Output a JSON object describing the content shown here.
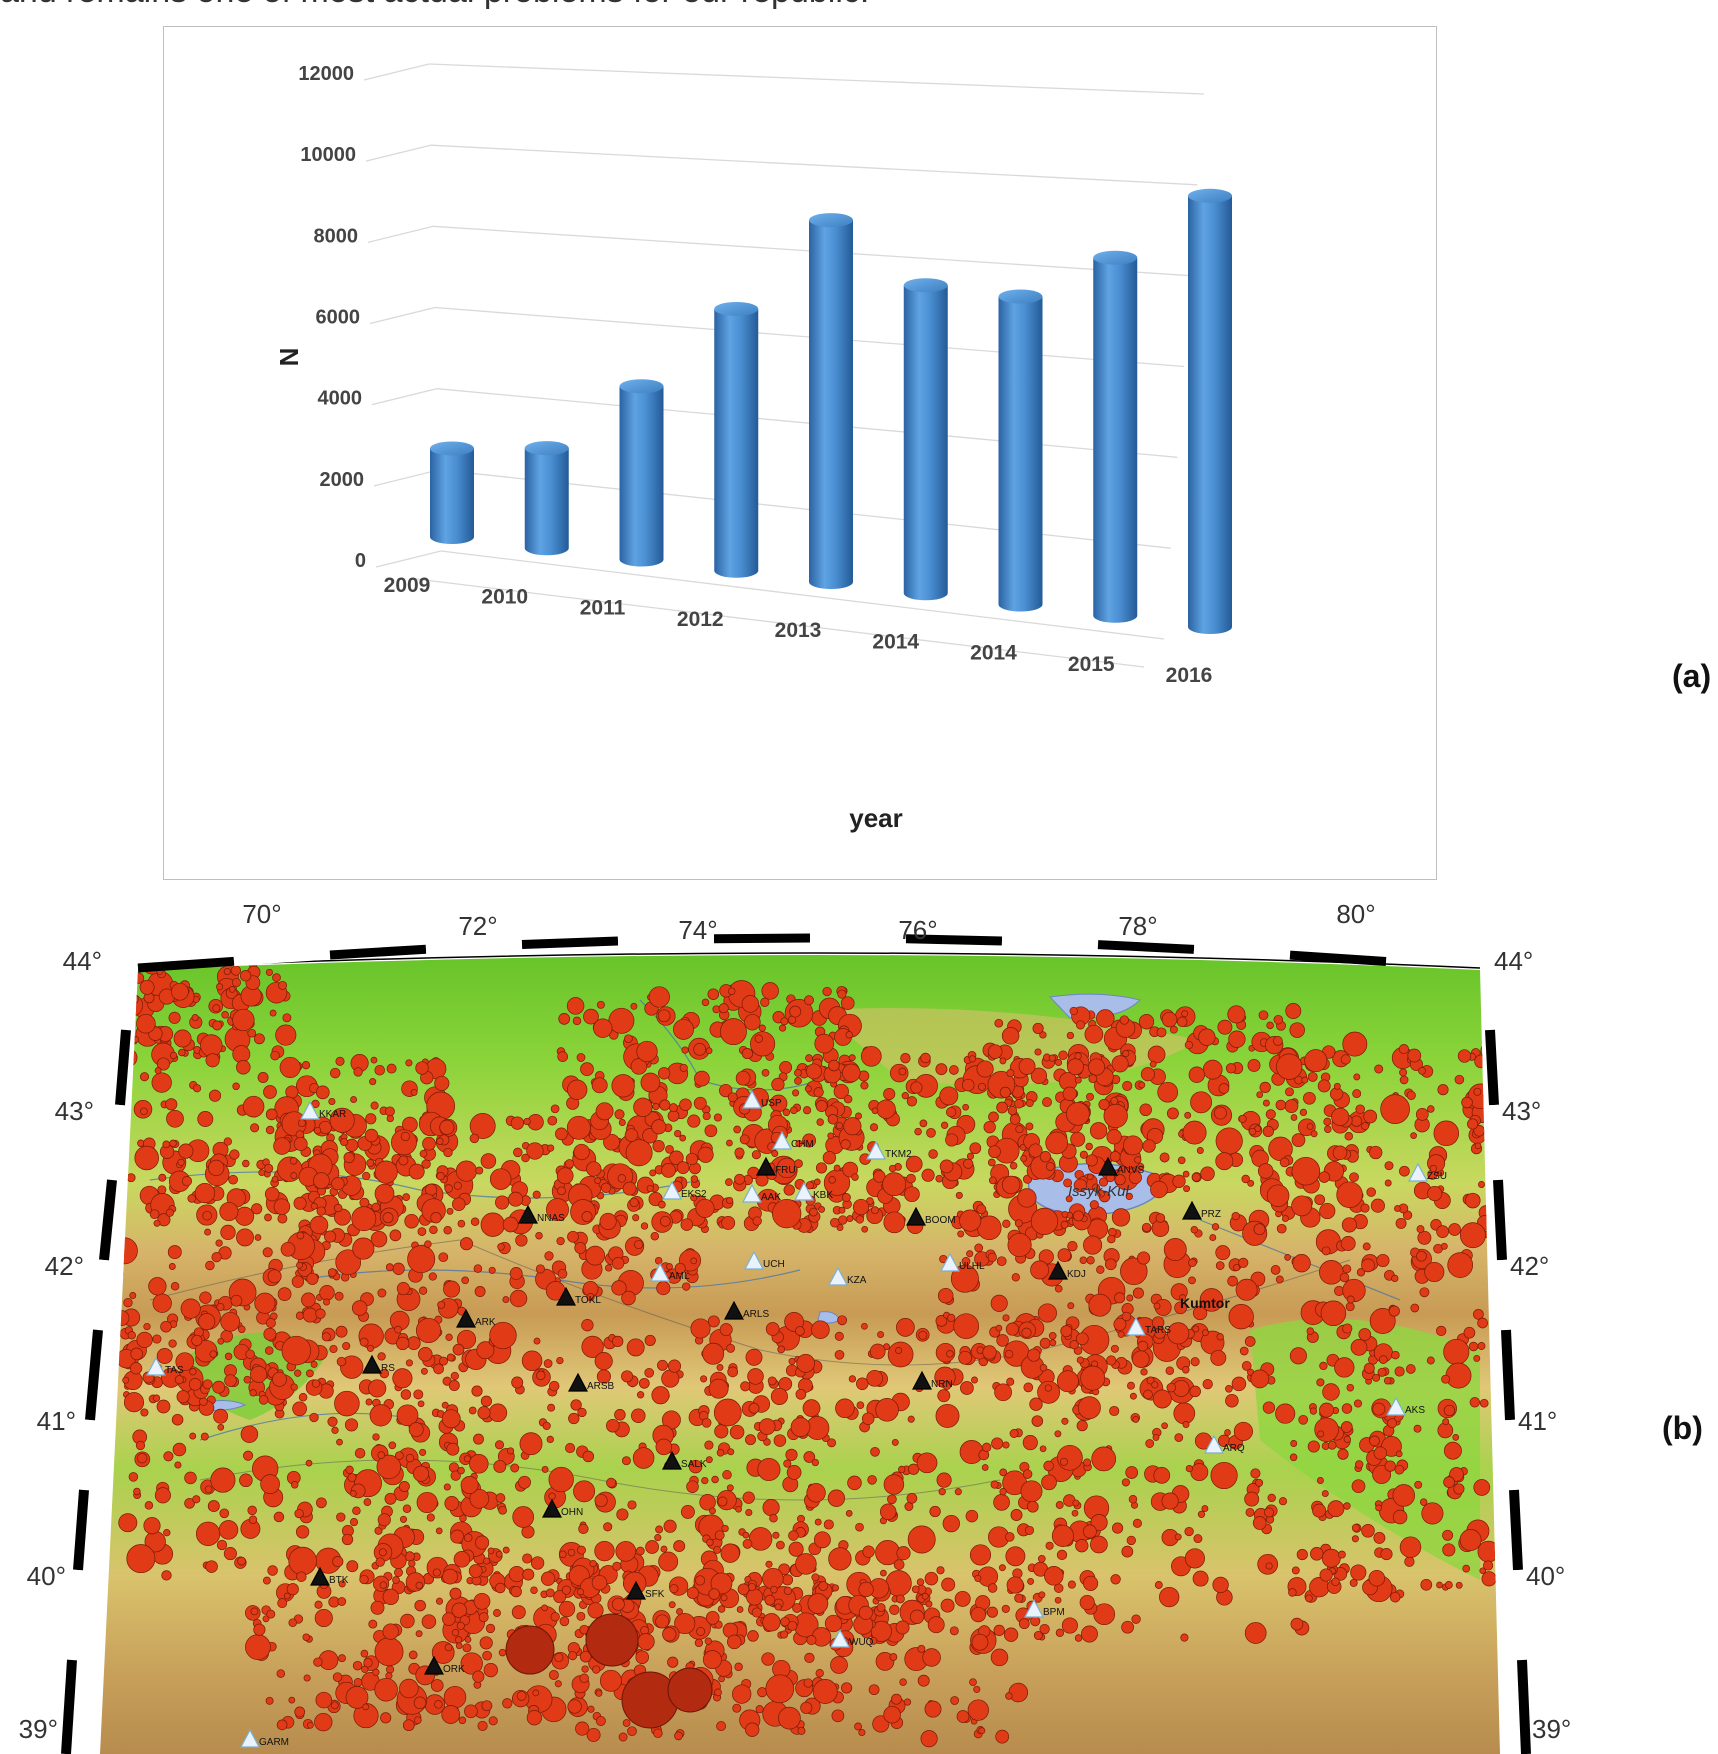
{
  "intro_text": "and remains one of most actual problems for our republic.",
  "panel_labels": {
    "a": "(a)",
    "b": "(b)"
  },
  "chart_data": {
    "type": "bar",
    "title": "",
    "xlabel": "year",
    "ylabel": "N",
    "categories": [
      "2009",
      "2010",
      "2011",
      "2012",
      "2013",
      "2014",
      "2014",
      "2015",
      "2016"
    ],
    "values": [
      2300,
      2600,
      4500,
      6800,
      9400,
      8000,
      8000,
      9300,
      11200
    ],
    "ylim": [
      0,
      12000
    ],
    "yticks": [
      0,
      2000,
      4000,
      6000,
      8000,
      10000,
      12000
    ],
    "ytick_labels": [
      "0",
      "2000",
      "4000",
      "6000",
      "8000",
      "10000",
      "12000"
    ],
    "grid": true,
    "legend": "none",
    "bar_color": "#3f84c8"
  },
  "map": {
    "top_lon_labels": [
      "70°",
      "72°",
      "74°",
      "76°",
      "78°",
      "80°"
    ],
    "left_lat_labels": [
      "44°",
      "43°",
      "42°",
      "41°",
      "40°",
      "39°"
    ],
    "right_lat_labels": [
      "44°",
      "43°",
      "42°",
      "41°",
      "40°",
      "39°"
    ],
    "lake_label": "Issyk-Kul",
    "place_label": "Kumtor",
    "stations": [
      {
        "code": "KKAR",
        "kind": "light"
      },
      {
        "code": "USP",
        "kind": "light"
      },
      {
        "code": "CHM",
        "kind": "light"
      },
      {
        "code": "TKM2",
        "kind": "light"
      },
      {
        "code": "FRU",
        "kind": "dark"
      },
      {
        "code": "EKS2",
        "kind": "light"
      },
      {
        "code": "AAK",
        "kind": "light"
      },
      {
        "code": "KBK",
        "kind": "light"
      },
      {
        "code": "BOOM",
        "kind": "dark"
      },
      {
        "code": "ANVS",
        "kind": "dark"
      },
      {
        "code": "ZSU",
        "kind": "light"
      },
      {
        "code": "PRZ",
        "kind": "dark"
      },
      {
        "code": "NNAS",
        "kind": "dark"
      },
      {
        "code": "UCH",
        "kind": "light"
      },
      {
        "code": "ULHL",
        "kind": "light"
      },
      {
        "code": "AML",
        "kind": "light"
      },
      {
        "code": "KZA",
        "kind": "light"
      },
      {
        "code": "KDJ",
        "kind": "dark"
      },
      {
        "code": "TOKL",
        "kind": "dark"
      },
      {
        "code": "ARLS",
        "kind": "dark"
      },
      {
        "code": "ARK",
        "kind": "dark"
      },
      {
        "code": "TARS",
        "kind": "light"
      },
      {
        "code": "TAS",
        "kind": "light"
      },
      {
        "code": "RS",
        "kind": "dark"
      },
      {
        "code": "NRN",
        "kind": "dark"
      },
      {
        "code": "ARSB",
        "kind": "dark"
      },
      {
        "code": "AKS",
        "kind": "light"
      },
      {
        "code": "ARQ",
        "kind": "light"
      },
      {
        "code": "SALK",
        "kind": "dark"
      },
      {
        "code": "OHN",
        "kind": "dark"
      },
      {
        "code": "BTK",
        "kind": "dark"
      },
      {
        "code": "SFK",
        "kind": "dark"
      },
      {
        "code": "BPM",
        "kind": "light"
      },
      {
        "code": "WUQ",
        "kind": "light"
      },
      {
        "code": "ORK",
        "kind": "dark"
      },
      {
        "code": "GARM",
        "kind": "light"
      }
    ]
  }
}
